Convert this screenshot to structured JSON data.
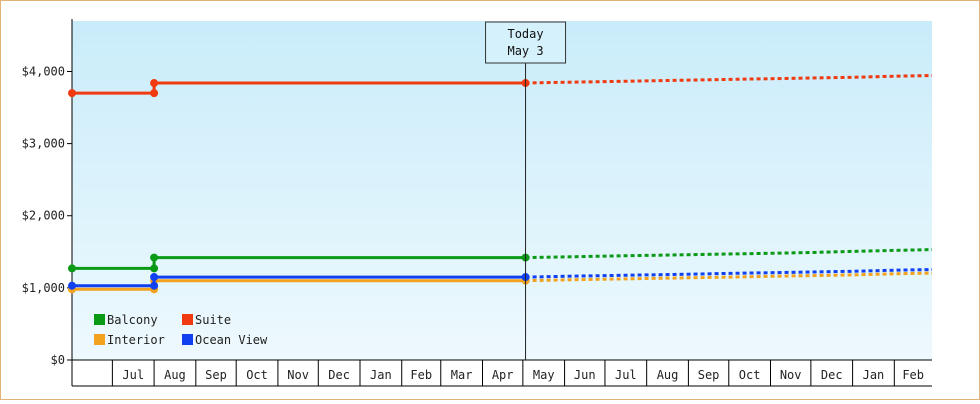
{
  "chart_data": {
    "type": "line",
    "title": "",
    "xlabel": "",
    "ylabel": "",
    "ylim": [
      0,
      4700
    ],
    "y_ticks": [
      "$0",
      "$1,000",
      "$2,000",
      "$3,000",
      "$4,000"
    ],
    "y_tick_values": [
      0,
      1000,
      2000,
      3000,
      4000
    ],
    "x_ticks": [
      "Jul",
      "Aug",
      "Sep",
      "Oct",
      "Nov",
      "Dec",
      "Jan",
      "Feb",
      "Mar",
      "Apr",
      "May",
      "Jun",
      "Jul",
      "Aug",
      "Sep",
      "Oct",
      "Nov",
      "Dec",
      "Jan",
      "Feb"
    ],
    "x_tick_dates": [
      "2023-07-01",
      "2023-08-01",
      "2023-09-01",
      "2023-10-01",
      "2023-11-01",
      "2023-12-01",
      "2024-01-01",
      "2024-02-01",
      "2024-03-01",
      "2024-04-01",
      "2024-05-01",
      "2024-06-01",
      "2024-07-01",
      "2024-08-01",
      "2024-09-01",
      "2024-10-01",
      "2024-11-01",
      "2024-12-01",
      "2025-01-01",
      "2025-02-01"
    ],
    "xlim": [
      "2023-06-01",
      "2025-03-01"
    ],
    "today_marker": {
      "label_line1": "Today",
      "label_line2": "May 3",
      "date": "2024-05-03"
    },
    "grid": false,
    "legend_position": "bottom-left",
    "series": [
      {
        "name": "Balcony",
        "color": "#0a9a16",
        "history": [
          [
            "2023-06-01",
            1270
          ],
          [
            "2023-08-01",
            1270
          ],
          [
            "2023-08-01",
            1420
          ],
          [
            "2024-05-03",
            1420
          ]
        ],
        "markers": [
          [
            "2023-06-01",
            1270
          ],
          [
            "2023-08-01",
            1270
          ],
          [
            "2023-08-01",
            1420
          ],
          [
            "2024-05-03",
            1420
          ]
        ],
        "forecast": [
          [
            "2024-05-03",
            1420
          ],
          [
            "2024-06-01",
            1430
          ],
          [
            "2024-07-01",
            1440
          ],
          [
            "2024-08-01",
            1450
          ],
          [
            "2024-09-01",
            1460
          ],
          [
            "2024-10-01",
            1470
          ],
          [
            "2024-11-01",
            1480
          ],
          [
            "2024-12-01",
            1490
          ],
          [
            "2025-01-01",
            1505
          ],
          [
            "2025-02-01",
            1520
          ],
          [
            "2025-03-01",
            1530
          ]
        ]
      },
      {
        "name": "Suite",
        "color": "#f03a10",
        "history": [
          [
            "2023-06-01",
            3700
          ],
          [
            "2023-08-01",
            3700
          ],
          [
            "2023-08-01",
            3840
          ],
          [
            "2024-05-03",
            3840
          ]
        ],
        "markers": [
          [
            "2023-06-01",
            3700
          ],
          [
            "2023-08-01",
            3700
          ],
          [
            "2023-08-01",
            3840
          ],
          [
            "2024-05-03",
            3840
          ]
        ],
        "forecast": [
          [
            "2024-05-03",
            3840
          ],
          [
            "2024-06-01",
            3850
          ],
          [
            "2024-07-01",
            3860
          ],
          [
            "2024-08-01",
            3870
          ],
          [
            "2024-09-01",
            3880
          ],
          [
            "2024-10-01",
            3890
          ],
          [
            "2024-11-01",
            3900
          ],
          [
            "2024-12-01",
            3910
          ],
          [
            "2025-01-01",
            3920
          ],
          [
            "2025-02-01",
            3935
          ],
          [
            "2025-03-01",
            3945
          ]
        ]
      },
      {
        "name": "Interior",
        "color": "#f2a21c",
        "history": [
          [
            "2023-06-01",
            980
          ],
          [
            "2023-08-01",
            980
          ],
          [
            "2023-08-01",
            1100
          ],
          [
            "2024-05-03",
            1100
          ]
        ],
        "markers": [
          [
            "2023-06-01",
            980
          ],
          [
            "2023-08-01",
            980
          ],
          [
            "2023-08-01",
            1100
          ],
          [
            "2024-05-03",
            1100
          ]
        ],
        "forecast": [
          [
            "2024-05-03",
            1100
          ],
          [
            "2024-06-01",
            1110
          ],
          [
            "2024-07-01",
            1120
          ],
          [
            "2024-08-01",
            1130
          ],
          [
            "2024-09-01",
            1140
          ],
          [
            "2024-10-01",
            1150
          ],
          [
            "2024-11-01",
            1160
          ],
          [
            "2024-12-01",
            1170
          ],
          [
            "2025-01-01",
            1180
          ],
          [
            "2025-02-01",
            1195
          ],
          [
            "2025-03-01",
            1205
          ]
        ]
      },
      {
        "name": "Ocean View",
        "color": "#1040f0",
        "history": [
          [
            "2023-06-01",
            1030
          ],
          [
            "2023-08-01",
            1030
          ],
          [
            "2023-08-01",
            1150
          ],
          [
            "2024-05-03",
            1150
          ]
        ],
        "markers": [
          [
            "2023-06-01",
            1030
          ],
          [
            "2023-08-01",
            1030
          ],
          [
            "2023-08-01",
            1150
          ],
          [
            "2024-05-03",
            1150
          ]
        ],
        "forecast": [
          [
            "2024-05-03",
            1150
          ],
          [
            "2024-06-01",
            1160
          ],
          [
            "2024-07-01",
            1170
          ],
          [
            "2024-08-01",
            1180
          ],
          [
            "2024-09-01",
            1190
          ],
          [
            "2024-10-01",
            1200
          ],
          [
            "2024-11-01",
            1210
          ],
          [
            "2024-12-01",
            1220
          ],
          [
            "2025-01-01",
            1230
          ],
          [
            "2025-02-01",
            1245
          ],
          [
            "2025-03-01",
            1255
          ]
        ]
      }
    ]
  }
}
